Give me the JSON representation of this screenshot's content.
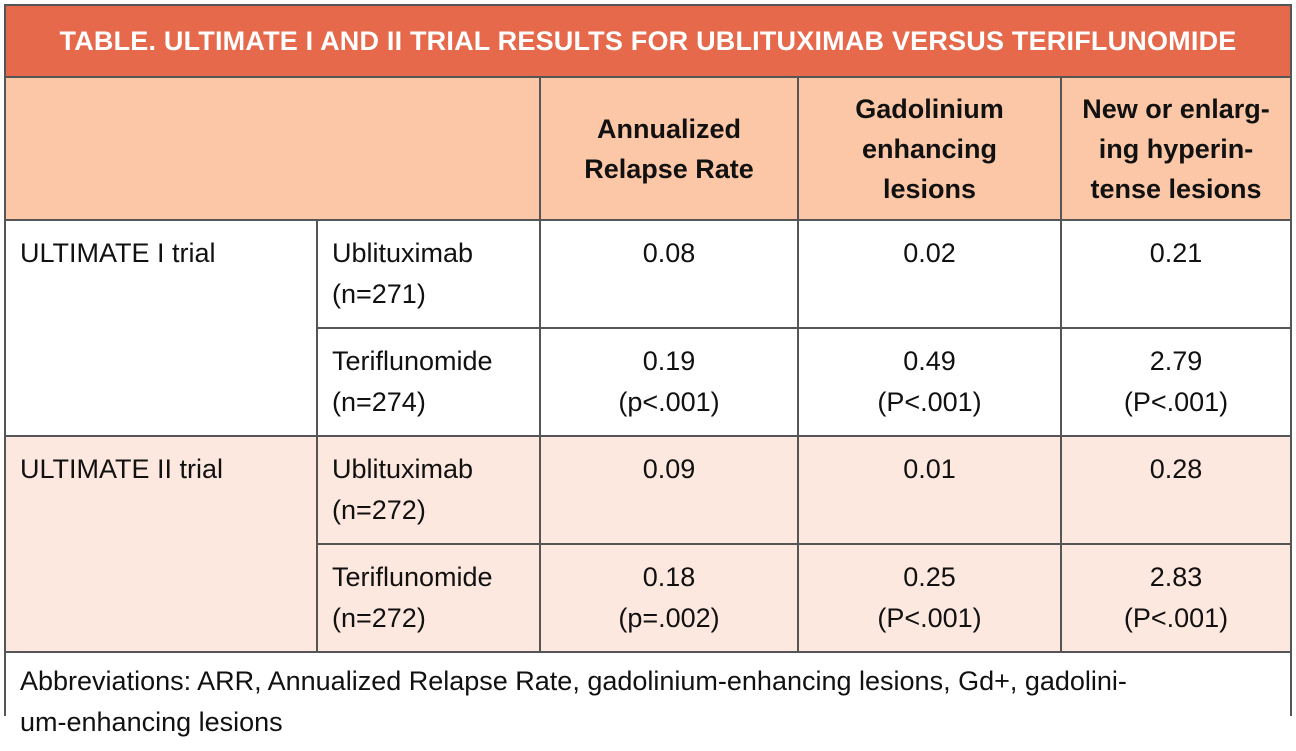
{
  "title": "TABLE. ULTIMATE I AND II TRIAL RESULTS FOR UBLITUXIMAB VERSUS TERIFLUNOMIDE",
  "columns": [
    {
      "label": "Annualized\nRelapse Rate"
    },
    {
      "label": "Gadolinium\nenhancing\nlesions"
    },
    {
      "label": "New or enlarg-\ning hyperin-\ntense lesions"
    }
  ],
  "trials": [
    {
      "name": "ULTIMATE I trial",
      "arms": [
        {
          "drug": "Ublituximab",
          "n": "(n=271)",
          "values": [
            {
              "main": "0.08",
              "p": ""
            },
            {
              "main": "0.02",
              "p": ""
            },
            {
              "main": "0.21",
              "p": ""
            }
          ]
        },
        {
          "drug": "Teriflunomide",
          "n": "(n=274)",
          "values": [
            {
              "main": "0.19",
              "p": "(p<.001)"
            },
            {
              "main": "0.49",
              "p": "(P<.001)"
            },
            {
              "main": "2.79",
              "p": "(P<.001)"
            }
          ]
        }
      ]
    },
    {
      "name": "ULTIMATE II trial",
      "arms": [
        {
          "drug": "Ublituximab",
          "n": "(n=272)",
          "values": [
            {
              "main": "0.09",
              "p": ""
            },
            {
              "main": "0.01",
              "p": ""
            },
            {
              "main": "0.28",
              "p": ""
            }
          ]
        },
        {
          "drug": "Teriflunomide",
          "n": "(n=272)",
          "values": [
            {
              "main": "0.18",
              "p": "(p=.002)"
            },
            {
              "main": "0.25",
              "p": "(P<.001)"
            },
            {
              "main": "2.83",
              "p": "(P<.001)"
            }
          ]
        }
      ]
    }
  ],
  "footnote": "Abbreviations: ARR, Annualized Relapse Rate, gadolinium-enhancing lesions, Gd+, gadolini-\num-enhancing lesions",
  "colors": {
    "title_bg": "#e5694a",
    "header_bg": "#fbc7a7",
    "band_bg": "#fde8df"
  }
}
